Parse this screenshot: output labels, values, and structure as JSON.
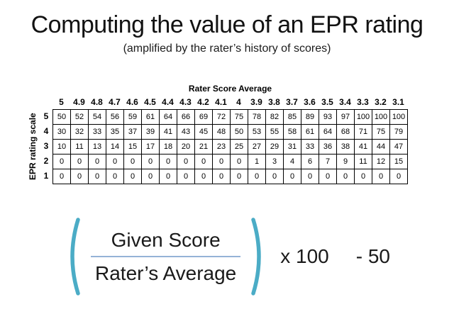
{
  "title": "Computing the value of an EPR rating",
  "subtitle": "(amplified by the rater’s history of scores)",
  "chart_data": {
    "type": "table",
    "col_axis_label": "Rater Score Average",
    "row_axis_label": "EPR rating scale",
    "columns": [
      "5",
      "4.9",
      "4.8",
      "4.7",
      "4.6",
      "4.5",
      "4.4",
      "4.3",
      "4.2",
      "4.1",
      "4",
      "3.9",
      "3.8",
      "3.7",
      "3.6",
      "3.5",
      "3.4",
      "3.3",
      "3.2",
      "3.1"
    ],
    "rows": [
      {
        "label": "5",
        "values": [
          50,
          52,
          54,
          56,
          59,
          61,
          64,
          66,
          69,
          72,
          75,
          78,
          82,
          85,
          89,
          93,
          97,
          100,
          100,
          100
        ]
      },
      {
        "label": "4",
        "values": [
          30,
          32,
          33,
          35,
          37,
          39,
          41,
          43,
          45,
          48,
          50,
          53,
          55,
          58,
          61,
          64,
          68,
          71,
          75,
          79
        ]
      },
      {
        "label": "3",
        "values": [
          10,
          11,
          13,
          14,
          15,
          17,
          18,
          20,
          21,
          23,
          25,
          27,
          29,
          31,
          33,
          36,
          38,
          41,
          44,
          47
        ]
      },
      {
        "label": "2",
        "values": [
          0,
          0,
          0,
          0,
          0,
          0,
          0,
          0,
          0,
          0,
          0,
          1,
          3,
          4,
          6,
          7,
          9,
          11,
          12,
          15
        ]
      },
      {
        "label": "1",
        "values": [
          0,
          0,
          0,
          0,
          0,
          0,
          0,
          0,
          0,
          0,
          0,
          0,
          0,
          0,
          0,
          0,
          0,
          0,
          0,
          0
        ]
      }
    ]
  },
  "formula": {
    "numerator": "Given Score",
    "denominator": "Rater’s Average",
    "multiplier": "x 100",
    "subtraction": "- 50",
    "bracket_color": "#4BACC6",
    "divider_color": "#95B3D7"
  }
}
